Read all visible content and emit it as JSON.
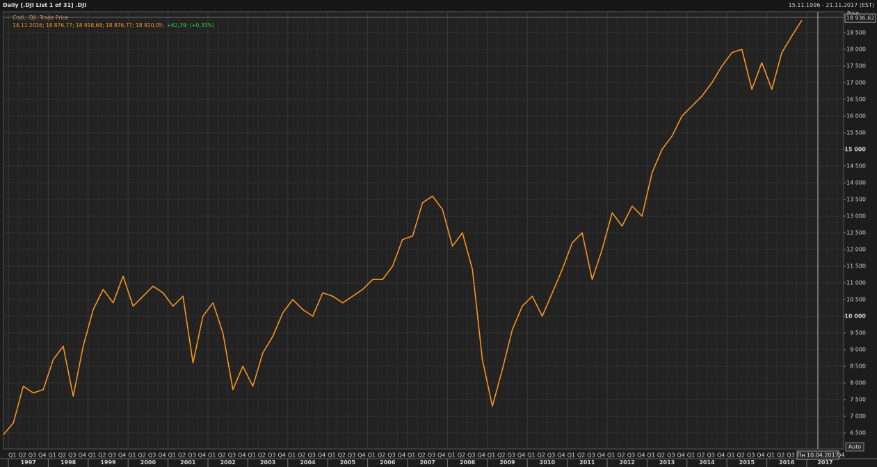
{
  "chart_data": {
    "type": "line",
    "title": "Daily [.DJI List 1 of 31] .DJI",
    "date_range": "15.11.1996 - 21.11.2017 (EST)",
    "y_axis_label": "Price",
    "legend_values": "14.11.2016; 18 876,77; 18 918,68; 18 876,77; 18 910,05;",
    "legend_change": "+62,39; (+0,33%)",
    "last_price": {
      "value": 18936.62,
      "label": "18 936,62"
    },
    "cursor_date": "Пн 10.04.2017",
    "scale_mode": "Auto",
    "quarter_labels": [
      "Q1",
      "Q2",
      "Q3",
      "Q4"
    ],
    "years": [
      1997,
      1998,
      1999,
      2000,
      2001,
      2002,
      2003,
      2004,
      2005,
      2006,
      2007,
      2008,
      2009,
      2010,
      2011,
      2012,
      2013,
      2014,
      2015,
      2016,
      2017
    ],
    "x": [
      "1996 Q4",
      "1997 Q1",
      "1997 Q2",
      "1997 Q3",
      "1997 Q4",
      "1998 Q1",
      "1998 Q2",
      "1998 Q3",
      "1998 Q4",
      "1999 Q1",
      "1999 Q2",
      "1999 Q3",
      "1999 Q4",
      "2000 Q1",
      "2000 Q2",
      "2000 Q3",
      "2000 Q4",
      "2001 Q1",
      "2001 Q2",
      "2001 Q3",
      "2001 Q4",
      "2002 Q1",
      "2002 Q2",
      "2002 Q3",
      "2002 Q4",
      "2003 Q1",
      "2003 Q2",
      "2003 Q3",
      "2003 Q4",
      "2004 Q1",
      "2004 Q2",
      "2004 Q3",
      "2004 Q4",
      "2005 Q1",
      "2005 Q2",
      "2005 Q3",
      "2005 Q4",
      "2006 Q1",
      "2006 Q2",
      "2006 Q3",
      "2006 Q4",
      "2007 Q1",
      "2007 Q2",
      "2007 Q3",
      "2007 Q4",
      "2008 Q1",
      "2008 Q2",
      "2008 Q3",
      "2008 Q4",
      "2009 Q1",
      "2009 Q2",
      "2009 Q3",
      "2009 Q4",
      "2010 Q1",
      "2010 Q2",
      "2010 Q3",
      "2010 Q4",
      "2011 Q1",
      "2011 Q2",
      "2011 Q3",
      "2011 Q4",
      "2012 Q1",
      "2012 Q2",
      "2012 Q3",
      "2012 Q4",
      "2013 Q1",
      "2013 Q2",
      "2013 Q3",
      "2013 Q4",
      "2014 Q1",
      "2014 Q2",
      "2014 Q3",
      "2014 Q4",
      "2015 Q1",
      "2015 Q2",
      "2015 Q3",
      "2015 Q4",
      "2016 Q1",
      "2016 Q2",
      "2016 Q3",
      "2016 Q4"
    ],
    "series": [
      {
        "name": "Cndl, .DJI, Trade Price",
        "color": "#f7941d",
        "values": [
          6448,
          6800,
          7900,
          7700,
          7800,
          8700,
          9100,
          7600,
          9100,
          10200,
          10800,
          10400,
          11200,
          10300,
          10600,
          10900,
          10700,
          10300,
          10600,
          8600,
          10000,
          10400,
          9500,
          7800,
          8500,
          7900,
          8900,
          9400,
          10100,
          10500,
          10200,
          10000,
          10700,
          10600,
          10400,
          10600,
          10800,
          11100,
          11100,
          11500,
          12300,
          12400,
          13400,
          13600,
          13200,
          12100,
          12500,
          11400,
          8700,
          7300,
          8400,
          9600,
          10300,
          10600,
          10000,
          10700,
          11400,
          12200,
          12500,
          11100,
          12000,
          13100,
          12700,
          13300,
          13000,
          14300,
          15000,
          15400,
          16000,
          16300,
          16600,
          17000,
          17500,
          17900,
          18000,
          16800,
          17600,
          16800,
          17900,
          18400,
          18868
        ]
      }
    ],
    "ylim": [
      6000,
      19000
    ],
    "yticks": [
      {
        "value": 6500,
        "label": "6 500"
      },
      {
        "value": 7000,
        "label": "7 000"
      },
      {
        "value": 7500,
        "label": "7 500"
      },
      {
        "value": 8000,
        "label": "8 000"
      },
      {
        "value": 8500,
        "label": "8 500"
      },
      {
        "value": 9000,
        "label": "9 000"
      },
      {
        "value": 9500,
        "label": "9 500"
      },
      {
        "value": 10000,
        "label": "10 000"
      },
      {
        "value": 10500,
        "label": "10 500"
      },
      {
        "value": 11000,
        "label": "11 000"
      },
      {
        "value": 11500,
        "label": "11 500"
      },
      {
        "value": 12000,
        "label": "12 000"
      },
      {
        "value": 12500,
        "label": "12 500"
      },
      {
        "value": 13000,
        "label": "13 000"
      },
      {
        "value": 13500,
        "label": "13 500"
      },
      {
        "value": 14000,
        "label": "14 000"
      },
      {
        "value": 14500,
        "label": "14 500"
      },
      {
        "value": 15000,
        "label": "15 000"
      },
      {
        "value": 15500,
        "label": "15 500"
      },
      {
        "value": 16000,
        "label": "16 000"
      },
      {
        "value": 16500,
        "label": "16 500"
      },
      {
        "value": 17000,
        "label": "17 000"
      },
      {
        "value": 17500,
        "label": "17 500"
      },
      {
        "value": 18000,
        "label": "18 000"
      },
      {
        "value": 18500,
        "label": "18 500"
      }
    ],
    "grid": true
  }
}
